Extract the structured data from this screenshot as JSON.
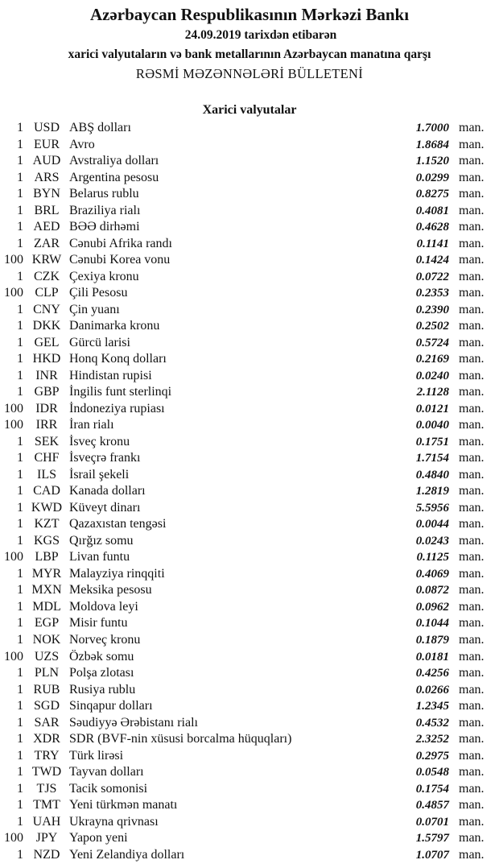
{
  "header": {
    "title": "Azərbaycan Respublikasının Mərkəzi Bankı",
    "date_line": "24.09.2019  tarixdən etibarən",
    "subtitle": "xarici valyutaların və bank metallarının Azərbaycan manatına qarşı",
    "bulletin": "RƏSMİ MƏZƏNNƏLƏRİ BÜLLETENİ"
  },
  "section_title": "Xarici valyutalar",
  "unit_label": "man.",
  "rates": [
    {
      "nominal": "1",
      "code": "USD",
      "name": "ABŞ dolları",
      "rate": "1.7000"
    },
    {
      "nominal": "1",
      "code": "EUR",
      "name": "Avro",
      "rate": "1.8684"
    },
    {
      "nominal": "1",
      "code": "AUD",
      "name": "Avstraliya dolları",
      "rate": "1.1520"
    },
    {
      "nominal": "1",
      "code": "ARS",
      "name": "Argentina pesosu",
      "rate": "0.0299"
    },
    {
      "nominal": "1",
      "code": "BYN",
      "name": "Belarus rublu",
      "rate": "0.8275"
    },
    {
      "nominal": "1",
      "code": "BRL",
      "name": "Braziliya rialı",
      "rate": "0.4081"
    },
    {
      "nominal": "1",
      "code": "AED",
      "name": "BƏƏ dirhəmi",
      "rate": "0.4628"
    },
    {
      "nominal": "1",
      "code": "ZAR",
      "name": "Cənubi Afrika randı",
      "rate": "0.1141"
    },
    {
      "nominal": "100",
      "code": "KRW",
      "name": "Cənubi Korea vonu",
      "rate": "0.1424"
    },
    {
      "nominal": "1",
      "code": "CZK",
      "name": "Çexiya kronu",
      "rate": "0.0722"
    },
    {
      "nominal": "100",
      "code": "CLP",
      "name": "Çili Pesosu",
      "rate": "0.2353"
    },
    {
      "nominal": "1",
      "code": "CNY",
      "name": "Çin yuanı",
      "rate": "0.2390"
    },
    {
      "nominal": "1",
      "code": "DKK",
      "name": "Danimarka kronu",
      "rate": "0.2502"
    },
    {
      "nominal": "1",
      "code": "GEL",
      "name": "Gürcü larisi",
      "rate": "0.5724"
    },
    {
      "nominal": "1",
      "code": "HKD",
      "name": "Honq Konq dolları",
      "rate": "0.2169"
    },
    {
      "nominal": "1",
      "code": "INR",
      "name": "Hindistan rupisi",
      "rate": "0.0240"
    },
    {
      "nominal": "1",
      "code": "GBP",
      "name": "İngilis funt sterlinqi",
      "rate": "2.1128"
    },
    {
      "nominal": "100",
      "code": "IDR",
      "name": "İndoneziya rupiası",
      "rate": "0.0121"
    },
    {
      "nominal": "100",
      "code": "IRR",
      "name": "İran rialı",
      "rate": "0.0040"
    },
    {
      "nominal": "1",
      "code": "SEK",
      "name": "İsveç kronu",
      "rate": "0.1751"
    },
    {
      "nominal": "1",
      "code": "CHF",
      "name": "İsveçrə frankı",
      "rate": "1.7154"
    },
    {
      "nominal": "1",
      "code": "ILS",
      "name": "İsrail şekeli",
      "rate": "0.4840"
    },
    {
      "nominal": "1",
      "code": "CAD",
      "name": "Kanada dolları",
      "rate": "1.2819"
    },
    {
      "nominal": "1",
      "code": "KWD",
      "name": "Küveyt dinarı",
      "rate": "5.5956"
    },
    {
      "nominal": "1",
      "code": "KZT",
      "name": "Qazaxıstan tengəsi",
      "rate": "0.0044"
    },
    {
      "nominal": "1",
      "code": "KGS",
      "name": "Qırğız somu",
      "rate": "0.0243"
    },
    {
      "nominal": "100",
      "code": "LBP",
      "name": "Livan funtu",
      "rate": "0.1125"
    },
    {
      "nominal": "1",
      "code": "MYR",
      "name": "Malayziya rinqqiti",
      "rate": "0.4069"
    },
    {
      "nominal": "1",
      "code": "MXN",
      "name": "Meksika pesosu",
      "rate": "0.0872"
    },
    {
      "nominal": "1",
      "code": "MDL",
      "name": "Moldova leyi",
      "rate": "0.0962"
    },
    {
      "nominal": "1",
      "code": "EGP",
      "name": "Misir funtu",
      "rate": "0.1044"
    },
    {
      "nominal": "1",
      "code": "NOK",
      "name": "Norveç kronu",
      "rate": "0.1879"
    },
    {
      "nominal": "100",
      "code": "UZS",
      "name": "Özbək somu",
      "rate": "0.0181"
    },
    {
      "nominal": "1",
      "code": "PLN",
      "name": "Polşa zlotası",
      "rate": "0.4256"
    },
    {
      "nominal": "1",
      "code": "RUB",
      "name": "Rusiya rublu",
      "rate": "0.0266"
    },
    {
      "nominal": "1",
      "code": "SGD",
      "name": "Sinqapur dolları",
      "rate": "1.2345"
    },
    {
      "nominal": "1",
      "code": "SAR",
      "name": "Səudiyyə Ərəbistanı rialı",
      "rate": "0.4532"
    },
    {
      "nominal": "1",
      "code": "XDR",
      "name": "SDR (BVF-nin xüsusi borcalma hüquqları)",
      "rate": "2.3252"
    },
    {
      "nominal": "1",
      "code": "TRY",
      "name": "Türk lirəsi",
      "rate": "0.2975"
    },
    {
      "nominal": "1",
      "code": "TWD",
      "name": "Tayvan dolları",
      "rate": "0.0548"
    },
    {
      "nominal": "1",
      "code": "TJS",
      "name": "Tacik somonisi",
      "rate": "0.1754"
    },
    {
      "nominal": "1",
      "code": "TMT",
      "name": "Yeni türkmən manatı",
      "rate": "0.4857"
    },
    {
      "nominal": "1",
      "code": "UAH",
      "name": "Ukrayna qrivnası",
      "rate": "0.0701"
    },
    {
      "nominal": "100",
      "code": "JPY",
      "name": "Yapon yeni",
      "rate": "1.5797"
    },
    {
      "nominal": "1",
      "code": "NZD",
      "name": "Yeni Zelandiya dolları",
      "rate": "1.0707"
    }
  ]
}
